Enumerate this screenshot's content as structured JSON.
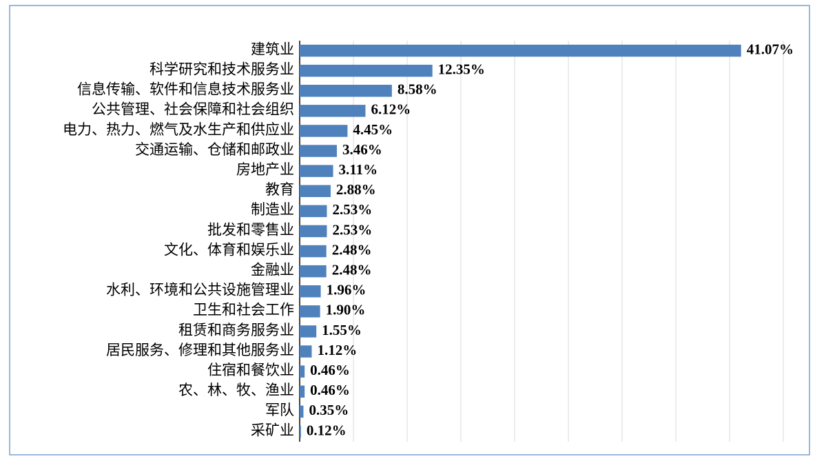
{
  "chart_data": {
    "type": "bar",
    "orientation": "horizontal",
    "categories": [
      "建筑业",
      "科学研究和技术服务业",
      "信息传输、软件和信息技术服务业",
      "公共管理、社会保障和社会组织",
      "电力、热力、燃气及水生产和供应业",
      "交通运输、仓储和邮政业",
      "房地产业",
      "教育",
      "制造业",
      "批发和零售业",
      "文化、体育和娱乐业",
      "金融业",
      "水利、环境和公共设施管理业",
      "卫生和社会工作",
      "租赁和商务服务业",
      "居民服务、修理和其他服务业",
      "住宿和餐饮业",
      "农、林、牧、渔业",
      "军队",
      "采矿业"
    ],
    "values": [
      41.07,
      12.35,
      8.58,
      6.12,
      4.45,
      3.46,
      3.11,
      2.88,
      2.53,
      2.53,
      2.48,
      2.48,
      1.96,
      1.9,
      1.55,
      1.12,
      0.46,
      0.46,
      0.35,
      0.12
    ],
    "value_labels": [
      "41.07%",
      "12.35%",
      "8.58%",
      "6.12%",
      "4.45%",
      "3.46%",
      "3.11%",
      "2.88%",
      "2.53%",
      "2.53%",
      "2.48%",
      "2.48%",
      "1.96%",
      "1.90%",
      "1.55%",
      "1.12%",
      "0.46%",
      "0.46%",
      "0.35%",
      "0.12%"
    ],
    "color": "#4f81bd",
    "xlim": [
      0,
      45
    ],
    "xticks": [
      0,
      5,
      10,
      15,
      20,
      25,
      30,
      35,
      40,
      45
    ],
    "grid": true
  }
}
